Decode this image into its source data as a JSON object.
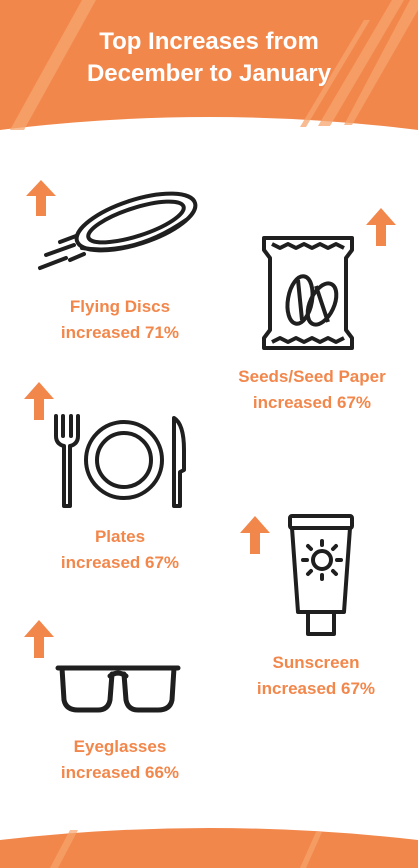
{
  "header": {
    "title_line1": "Top Increases from",
    "title_line2": "December to January"
  },
  "items": [
    {
      "line1": "Flying Discs",
      "line2": "increased 71%",
      "icon": "flying-disc-icon"
    },
    {
      "line1": "Seeds/Seed Paper",
      "line2": "increased 67%",
      "icon": "seed-packet-icon"
    },
    {
      "line1": "Plates",
      "line2": "increased 67%",
      "icon": "plate-fork-knife-icon"
    },
    {
      "line1": "Sunscreen",
      "line2": "increased 67%",
      "icon": "sunscreen-tube-icon"
    },
    {
      "line1": "Eyeglasses",
      "line2": "increased 66%",
      "icon": "eyeglasses-icon"
    }
  ],
  "colors": {
    "accent": "#f2874c",
    "stripe": "#f6a56e",
    "icon": "#1f1f1f",
    "background": "#ffffff"
  }
}
